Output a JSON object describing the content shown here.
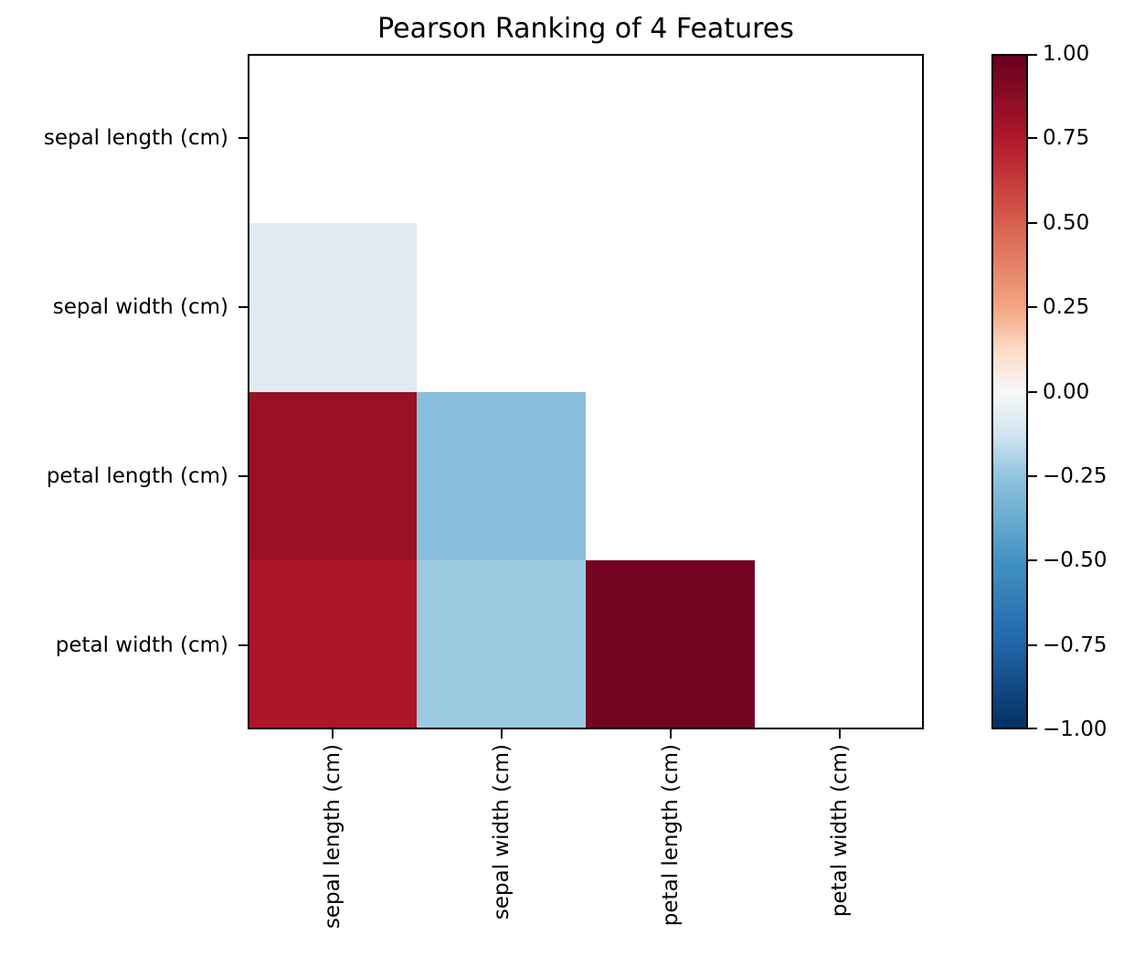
{
  "figure": {
    "title": "Pearson Ranking of 4 Features",
    "background_color": "#ffffff",
    "axes_color": "#000000"
  },
  "chart_data": {
    "type": "heatmap",
    "title": "Pearson Ranking of 4 Features",
    "xlabel": "",
    "ylabel": "",
    "grid": false,
    "categories": [
      "sepal length (cm)",
      "sepal width (cm)",
      "petal length (cm)",
      "petal width (cm)"
    ],
    "x_tick_labels": [
      "sepal length (cm)",
      "sepal width (cm)",
      "petal length (cm)",
      "petal width (cm)"
    ],
    "y_tick_labels": [
      "sepal length (cm)",
      "sepal width (cm)",
      "petal length (cm)",
      "petal width (cm)"
    ],
    "value_range": [
      -1,
      1
    ],
    "colormap": "RdBu_r",
    "triangle": "lower (diagonal and upper triangle unfilled / white)",
    "matrix": [
      [
        null,
        null,
        null,
        null
      ],
      [
        -0.12,
        null,
        null,
        null
      ],
      [
        0.87,
        -0.43,
        null,
        null
      ],
      [
        0.82,
        -0.37,
        0.96,
        null
      ]
    ],
    "cells": [
      {
        "row": 1,
        "col": 0,
        "row_label": "sepal width (cm)",
        "col_label": "sepal length (cm)",
        "value": -0.12,
        "color": "#dfeaf2"
      },
      {
        "row": 2,
        "col": 0,
        "row_label": "petal length (cm)",
        "col_label": "sepal length (cm)",
        "value": 0.87,
        "color": "#9a1127"
      },
      {
        "row": 2,
        "col": 1,
        "row_label": "petal length (cm)",
        "col_label": "sepal width (cm)",
        "value": -0.43,
        "color": "#89bfdb"
      },
      {
        "row": 3,
        "col": 0,
        "row_label": "petal width (cm)",
        "col_label": "sepal length (cm)",
        "value": 0.82,
        "color": "#ac1628"
      },
      {
        "row": 3,
        "col": 1,
        "row_label": "petal width (cm)",
        "col_label": "sepal width (cm)",
        "value": -0.37,
        "color": "#9ccbe1"
      },
      {
        "row": 3,
        "col": 2,
        "row_label": "petal width (cm)",
        "col_label": "petal length (cm)",
        "value": 0.96,
        "color": "#730421"
      }
    ],
    "colorbar": {
      "position": "right",
      "tick_labels": [
        "1.00",
        "0.75",
        "0.50",
        "0.25",
        "0.00",
        "−0.25",
        "−0.50",
        "−0.75",
        "−1.00"
      ],
      "tick_values": [
        1.0,
        0.75,
        0.5,
        0.25,
        0.0,
        -0.25,
        -0.5,
        -0.75,
        -1.0
      ],
      "gradient_stops": [
        {
          "pos": 0.0,
          "color": "#67001f"
        },
        {
          "pos": 0.125,
          "color": "#b2182b"
        },
        {
          "pos": 0.25,
          "color": "#d6604d"
        },
        {
          "pos": 0.375,
          "color": "#f4a582"
        },
        {
          "pos": 0.4375,
          "color": "#fddbc7"
        },
        {
          "pos": 0.5,
          "color": "#f7f7f7"
        },
        {
          "pos": 0.5625,
          "color": "#d1e5f0"
        },
        {
          "pos": 0.625,
          "color": "#92c5de"
        },
        {
          "pos": 0.75,
          "color": "#4393c3"
        },
        {
          "pos": 0.875,
          "color": "#2166ac"
        },
        {
          "pos": 1.0,
          "color": "#053061"
        }
      ]
    }
  }
}
